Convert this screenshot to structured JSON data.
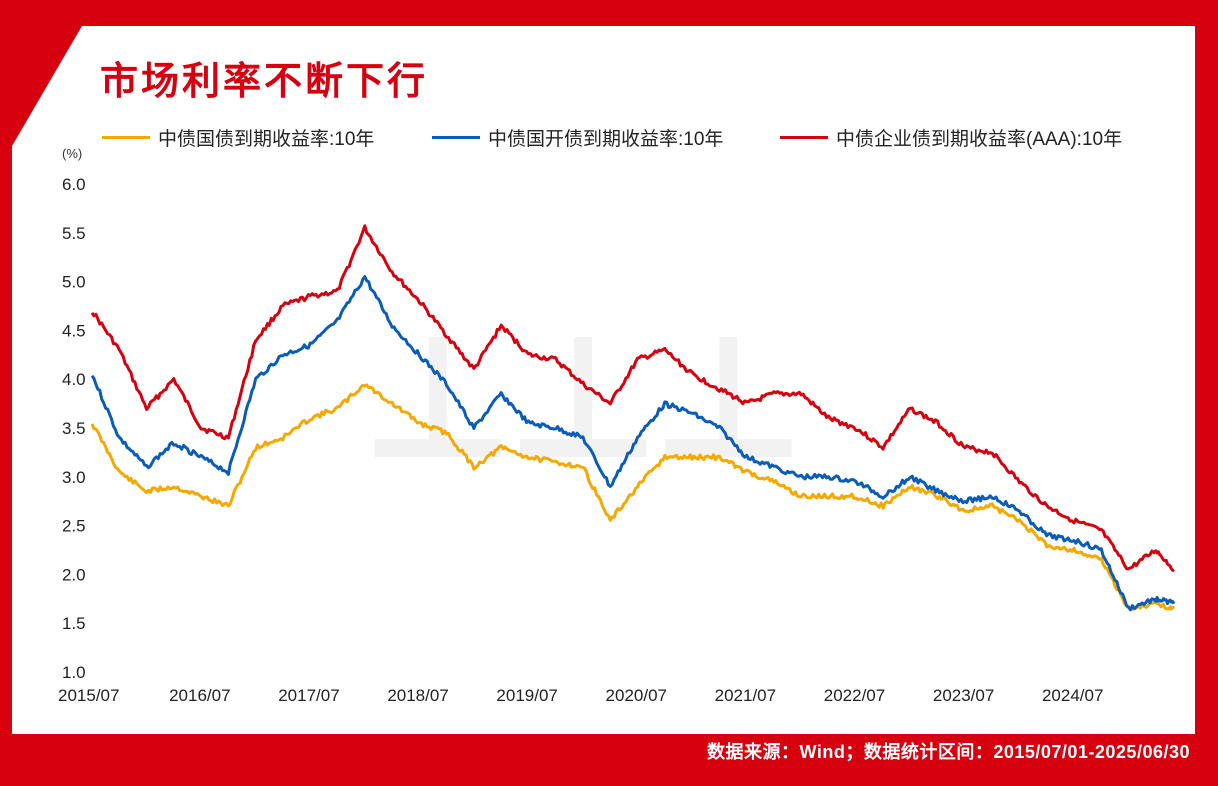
{
  "title": "市场利率不断下行",
  "unit_label": "(%)",
  "footer": "数据来源：Wind；数据统计区间：2015/07/01-2025/06/30",
  "chart_data": {
    "type": "line",
    "title": "市场利率不断下行",
    "ylabel": "(%)",
    "xlabel": "",
    "ylim": [
      1.0,
      6.0
    ],
    "yticks": [
      "1.0",
      "1.5",
      "2.0",
      "2.5",
      "3.0",
      "3.5",
      "4.0",
      "4.5",
      "5.0",
      "5.5",
      "6.0"
    ],
    "xticks": [
      "2015/07",
      "2016/07",
      "2017/07",
      "2018/07",
      "2019/07",
      "2020/07",
      "2021/07",
      "2022/07",
      "2023/07",
      "2024/07"
    ],
    "xrange": [
      "2015/07",
      "2025/06"
    ],
    "legend_position": "top",
    "grid": false,
    "series": [
      {
        "name": "中债国债到期收益率:10年",
        "color": "#f5a800",
        "x": [
          "2015/07",
          "2015/10",
          "2016/01",
          "2016/04",
          "2016/07",
          "2016/10",
          "2017/01",
          "2017/04",
          "2017/07",
          "2017/10",
          "2018/01",
          "2018/04",
          "2018/07",
          "2018/10",
          "2019/01",
          "2019/04",
          "2019/07",
          "2019/10",
          "2020/01",
          "2020/04",
          "2020/07",
          "2020/10",
          "2021/01",
          "2021/04",
          "2021/07",
          "2021/10",
          "2022/01",
          "2022/04",
          "2022/07",
          "2022/10",
          "2023/01",
          "2023/04",
          "2023/07",
          "2023/10",
          "2024/01",
          "2024/04",
          "2024/07",
          "2024/10",
          "2025/01",
          "2025/04",
          "2025/06"
        ],
        "values": [
          3.55,
          3.05,
          2.85,
          2.9,
          2.8,
          2.7,
          3.3,
          3.4,
          3.6,
          3.7,
          3.95,
          3.75,
          3.55,
          3.45,
          3.1,
          3.3,
          3.2,
          3.15,
          3.1,
          2.55,
          2.9,
          3.2,
          3.2,
          3.2,
          3.05,
          2.95,
          2.8,
          2.8,
          2.8,
          2.7,
          2.9,
          2.8,
          2.65,
          2.7,
          2.55,
          2.3,
          2.25,
          2.15,
          1.65,
          1.7,
          1.65
        ]
      },
      {
        "name": "中债国开债到期收益率:10年",
        "color": "#0a5cb8",
        "x": [
          "2015/07",
          "2015/10",
          "2016/01",
          "2016/04",
          "2016/07",
          "2016/10",
          "2017/01",
          "2017/04",
          "2017/07",
          "2017/10",
          "2018/01",
          "2018/04",
          "2018/07",
          "2018/10",
          "2019/01",
          "2019/04",
          "2019/07",
          "2019/10",
          "2020/01",
          "2020/04",
          "2020/07",
          "2020/10",
          "2021/01",
          "2021/04",
          "2021/07",
          "2021/10",
          "2022/01",
          "2022/04",
          "2022/07",
          "2022/10",
          "2023/01",
          "2023/04",
          "2023/07",
          "2023/10",
          "2024/01",
          "2024/04",
          "2024/07",
          "2024/10",
          "2025/01",
          "2025/04",
          "2025/06"
        ],
        "values": [
          4.05,
          3.4,
          3.1,
          3.35,
          3.2,
          3.05,
          4.0,
          4.25,
          4.35,
          4.6,
          5.05,
          4.55,
          4.25,
          3.95,
          3.5,
          3.85,
          3.55,
          3.5,
          3.4,
          2.9,
          3.4,
          3.75,
          3.65,
          3.5,
          3.2,
          3.1,
          3.0,
          3.0,
          2.95,
          2.8,
          3.0,
          2.85,
          2.75,
          2.8,
          2.65,
          2.4,
          2.35,
          2.25,
          1.65,
          1.75,
          1.7
        ]
      },
      {
        "name": "中债企业债到期收益率(AAA):10年",
        "color": "#d7000f",
        "x": [
          "2015/07",
          "2015/10",
          "2016/01",
          "2016/04",
          "2016/07",
          "2016/10",
          "2017/01",
          "2017/04",
          "2017/07",
          "2017/10",
          "2018/01",
          "2018/04",
          "2018/07",
          "2018/10",
          "2019/01",
          "2019/04",
          "2019/07",
          "2019/10",
          "2020/01",
          "2020/04",
          "2020/07",
          "2020/10",
          "2021/01",
          "2021/04",
          "2021/07",
          "2021/10",
          "2022/01",
          "2022/04",
          "2022/07",
          "2022/10",
          "2023/01",
          "2023/04",
          "2023/07",
          "2023/10",
          "2024/01",
          "2024/04",
          "2024/07",
          "2024/10",
          "2025/01",
          "2025/04",
          "2025/06"
        ],
        "values": [
          4.7,
          4.3,
          3.7,
          4.0,
          3.5,
          3.4,
          4.4,
          4.75,
          4.85,
          4.9,
          5.55,
          5.1,
          4.8,
          4.45,
          4.1,
          4.55,
          4.25,
          4.2,
          3.95,
          3.75,
          4.2,
          4.3,
          4.05,
          3.9,
          3.75,
          3.85,
          3.85,
          3.6,
          3.5,
          3.3,
          3.7,
          3.55,
          3.3,
          3.25,
          2.95,
          2.7,
          2.55,
          2.45,
          2.05,
          2.25,
          2.05
        ]
      }
    ]
  }
}
